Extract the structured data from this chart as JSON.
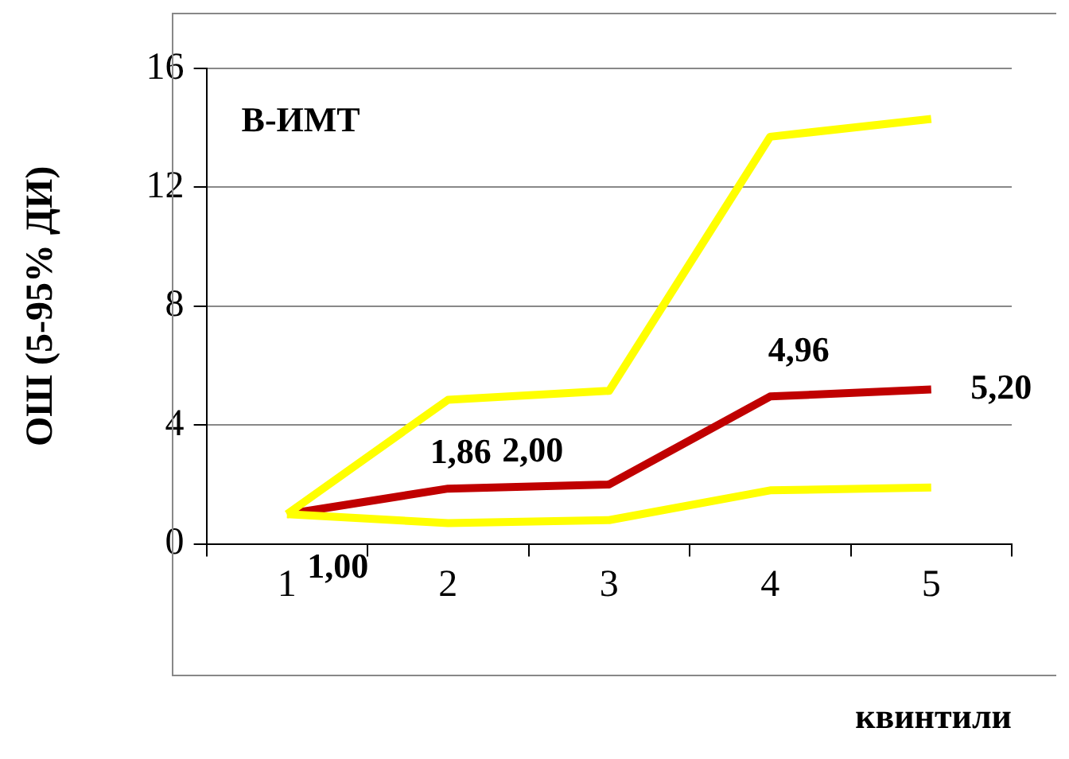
{
  "chart_data": {
    "type": "line",
    "xlabel": "квинтили",
    "ylabel": "ОШ (5-95% ДИ)",
    "annotations": [
      "В-ИМТ"
    ],
    "categories": [
      "1",
      "2",
      "3",
      "4",
      "5"
    ],
    "series": [
      {
        "color": "#ffff00",
        "values": [
          1.0,
          4.85,
          5.15,
          13.7,
          14.3
        ]
      },
      {
        "color": "#ffff00",
        "values": [
          1.0,
          0.7,
          0.8,
          1.8,
          1.9
        ]
      },
      {
        "color": "#c00000",
        "values": [
          1.0,
          1.86,
          2.0,
          4.96,
          5.2
        ],
        "value_labels": [
          "1,00",
          "1,86",
          "2,00",
          "4,96",
          "5,20"
        ]
      }
    ],
    "ylim": [
      0,
      16
    ],
    "yticks": [
      0,
      4,
      8,
      12,
      16
    ],
    "grid": "y",
    "legend": false,
    "marker": "none",
    "line_style": "solid"
  }
}
